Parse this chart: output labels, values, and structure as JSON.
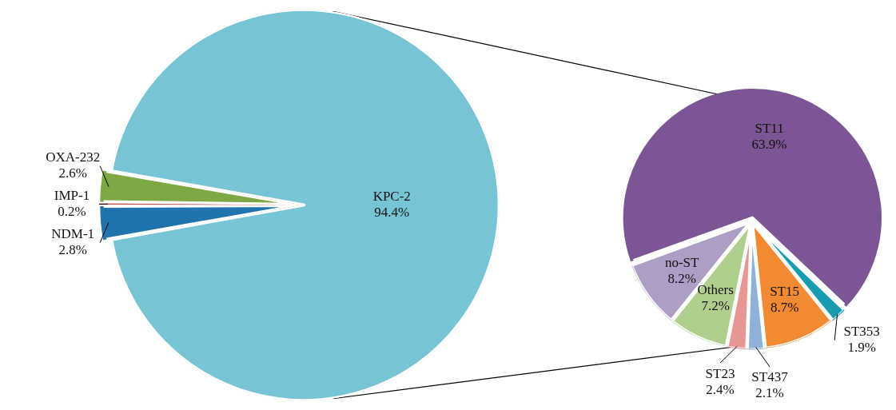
{
  "chart_data": [
    {
      "type": "pie",
      "categories": [
        "KPC-2",
        "NDM-1",
        "IMP-1",
        "OXA-232"
      ],
      "values": [
        94.4,
        2.8,
        0.2,
        2.6
      ],
      "colors": [
        "#77c4d6",
        "#2073ac",
        "#c0504d",
        "#7ea843"
      ],
      "value_labels": [
        "94.4%",
        "2.8%",
        "0.2%",
        "2.6%"
      ]
    },
    {
      "type": "pie",
      "categories": [
        "ST11",
        "ST353",
        "ST15",
        "ST437",
        "ST23",
        "Others",
        "no-ST"
      ],
      "values": [
        63.9,
        1.9,
        8.7,
        2.1,
        2.4,
        7.2,
        8.2
      ],
      "colors": [
        "#7b5594",
        "#1a9cb0",
        "#f28a33",
        "#8fb0d8",
        "#e79693",
        "#b0cf8e",
        "#ae9ec6"
      ],
      "value_labels": [
        "63.9%",
        "1.9%",
        "8.7%",
        "2.1%",
        "2.4%",
        "7.2%",
        "8.2%"
      ]
    }
  ]
}
